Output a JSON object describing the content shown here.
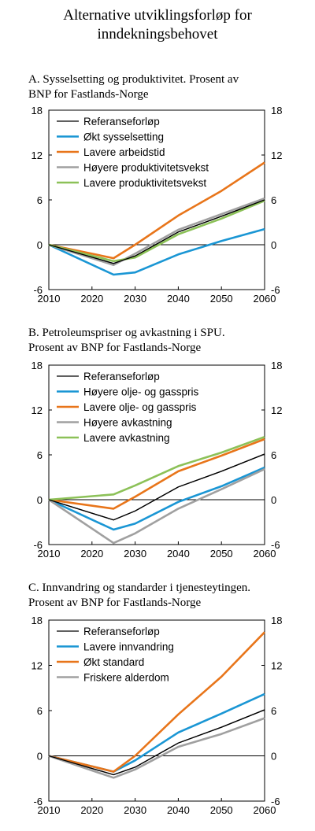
{
  "figure": {
    "title_line1": "Alternative utviklingsforløp for",
    "title_line2": "inndekningsbehovet"
  },
  "chart_data": [
    {
      "type": "line",
      "title_line1": "A.  Sysselsetting og produktivitet. Prosent av",
      "title_line2": "BNP for Fastlands-Norge",
      "x": [
        2010,
        2025,
        2030,
        2040,
        2050,
        2060
      ],
      "ylim": [
        -6,
        18
      ],
      "xlim": [
        2010,
        2060
      ],
      "yticks": [
        "-6",
        "0",
        "6",
        "12",
        "18"
      ],
      "xticks": [
        "2010",
        "2020",
        "2030",
        "2040",
        "2050",
        "2060"
      ],
      "legend_position": "top-left",
      "grid": false,
      "series": [
        {
          "name": "Referanseforløp",
          "color": "#000000",
          "width": 1.3,
          "values": [
            0,
            -2.5,
            -1.5,
            1.7,
            3.8,
            6.0
          ]
        },
        {
          "name": "Økt sysselsetting",
          "color": "#1a96d4",
          "width": 2.6,
          "values": [
            0,
            -4.0,
            -3.7,
            -1.3,
            0.5,
            2.1
          ]
        },
        {
          "name": "Lavere arbeidstid",
          "color": "#e8751a",
          "width": 2.6,
          "values": [
            0,
            -1.8,
            0.0,
            3.9,
            7.2,
            11.0
          ]
        },
        {
          "name": "Høyere produktivitetsvekst",
          "color": "#a0a0a0",
          "width": 2.6,
          "values": [
            0,
            -2.7,
            -1.2,
            2.0,
            4.1,
            6.2
          ]
        },
        {
          "name": "Lavere produktivitetsvekst",
          "color": "#8cc158",
          "width": 2.6,
          "values": [
            0,
            -2.2,
            -1.7,
            1.4,
            3.5,
            5.9
          ]
        }
      ]
    },
    {
      "type": "line",
      "title_line1": "B.  Petroleumspriser og avkastning i SPU.",
      "title_line2": "Prosent av BNP for Fastlands-Norge",
      "x": [
        2010,
        2025,
        2030,
        2040,
        2050,
        2060
      ],
      "ylim": [
        -6,
        18
      ],
      "xlim": [
        2010,
        2060
      ],
      "yticks": [
        "-6",
        "0",
        "6",
        "12",
        "18"
      ],
      "xticks": [
        "2010",
        "2020",
        "2030",
        "2040",
        "2050",
        "2060"
      ],
      "legend_position": "top-left",
      "grid": false,
      "series": [
        {
          "name": "Referanseforløp",
          "color": "#000000",
          "width": 1.3,
          "values": [
            0,
            -2.7,
            -1.5,
            1.7,
            3.8,
            6.1
          ]
        },
        {
          "name": "Høyere olje- og gasspris",
          "color": "#1a96d4",
          "width": 2.6,
          "values": [
            0,
            -4.0,
            -3.2,
            -0.3,
            1.8,
            4.3
          ]
        },
        {
          "name": "Lavere olje- og gasspris",
          "color": "#e8751a",
          "width": 2.6,
          "values": [
            0,
            -1.2,
            0.4,
            3.8,
            5.9,
            8.1
          ]
        },
        {
          "name": "Høyere avkastning",
          "color": "#a0a0a0",
          "width": 2.6,
          "values": [
            0,
            -5.8,
            -4.5,
            -1.2,
            1.4,
            4.1
          ]
        },
        {
          "name": "Lavere avkastning",
          "color": "#8cc158",
          "width": 2.6,
          "values": [
            0,
            0.7,
            1.9,
            4.5,
            6.3,
            8.4
          ]
        }
      ]
    },
    {
      "type": "line",
      "title_line1": "C.  Innvandring og standarder i tjenesteytingen.",
      "title_line2": "Prosent av BNP for Fastlands-Norge",
      "x": [
        2010,
        2025,
        2030,
        2040,
        2050,
        2060
      ],
      "ylim": [
        -6,
        18
      ],
      "xlim": [
        2010,
        2060
      ],
      "yticks": [
        "-6",
        "0",
        "6",
        "12",
        "18"
      ],
      "xticks": [
        "2010",
        "2020",
        "2030",
        "2040",
        "2050",
        "2060"
      ],
      "legend_position": "top-left",
      "grid": false,
      "series": [
        {
          "name": "Referanseforløp",
          "color": "#000000",
          "width": 1.3,
          "values": [
            0,
            -2.5,
            -1.5,
            1.7,
            3.8,
            6.1
          ]
        },
        {
          "name": "Lavere innvandring",
          "color": "#1a96d4",
          "width": 2.6,
          "values": [
            0,
            -2.1,
            -0.6,
            3.1,
            5.6,
            8.2
          ]
        },
        {
          "name": "Økt standard",
          "color": "#e8751a",
          "width": 2.6,
          "values": [
            0,
            -2.1,
            0.0,
            5.5,
            10.5,
            16.4
          ]
        },
        {
          "name": "Friskere alderdom",
          "color": "#a0a0a0",
          "width": 2.6,
          "values": [
            0,
            -2.9,
            -1.8,
            1.2,
            2.9,
            5.0
          ]
        }
      ]
    }
  ]
}
